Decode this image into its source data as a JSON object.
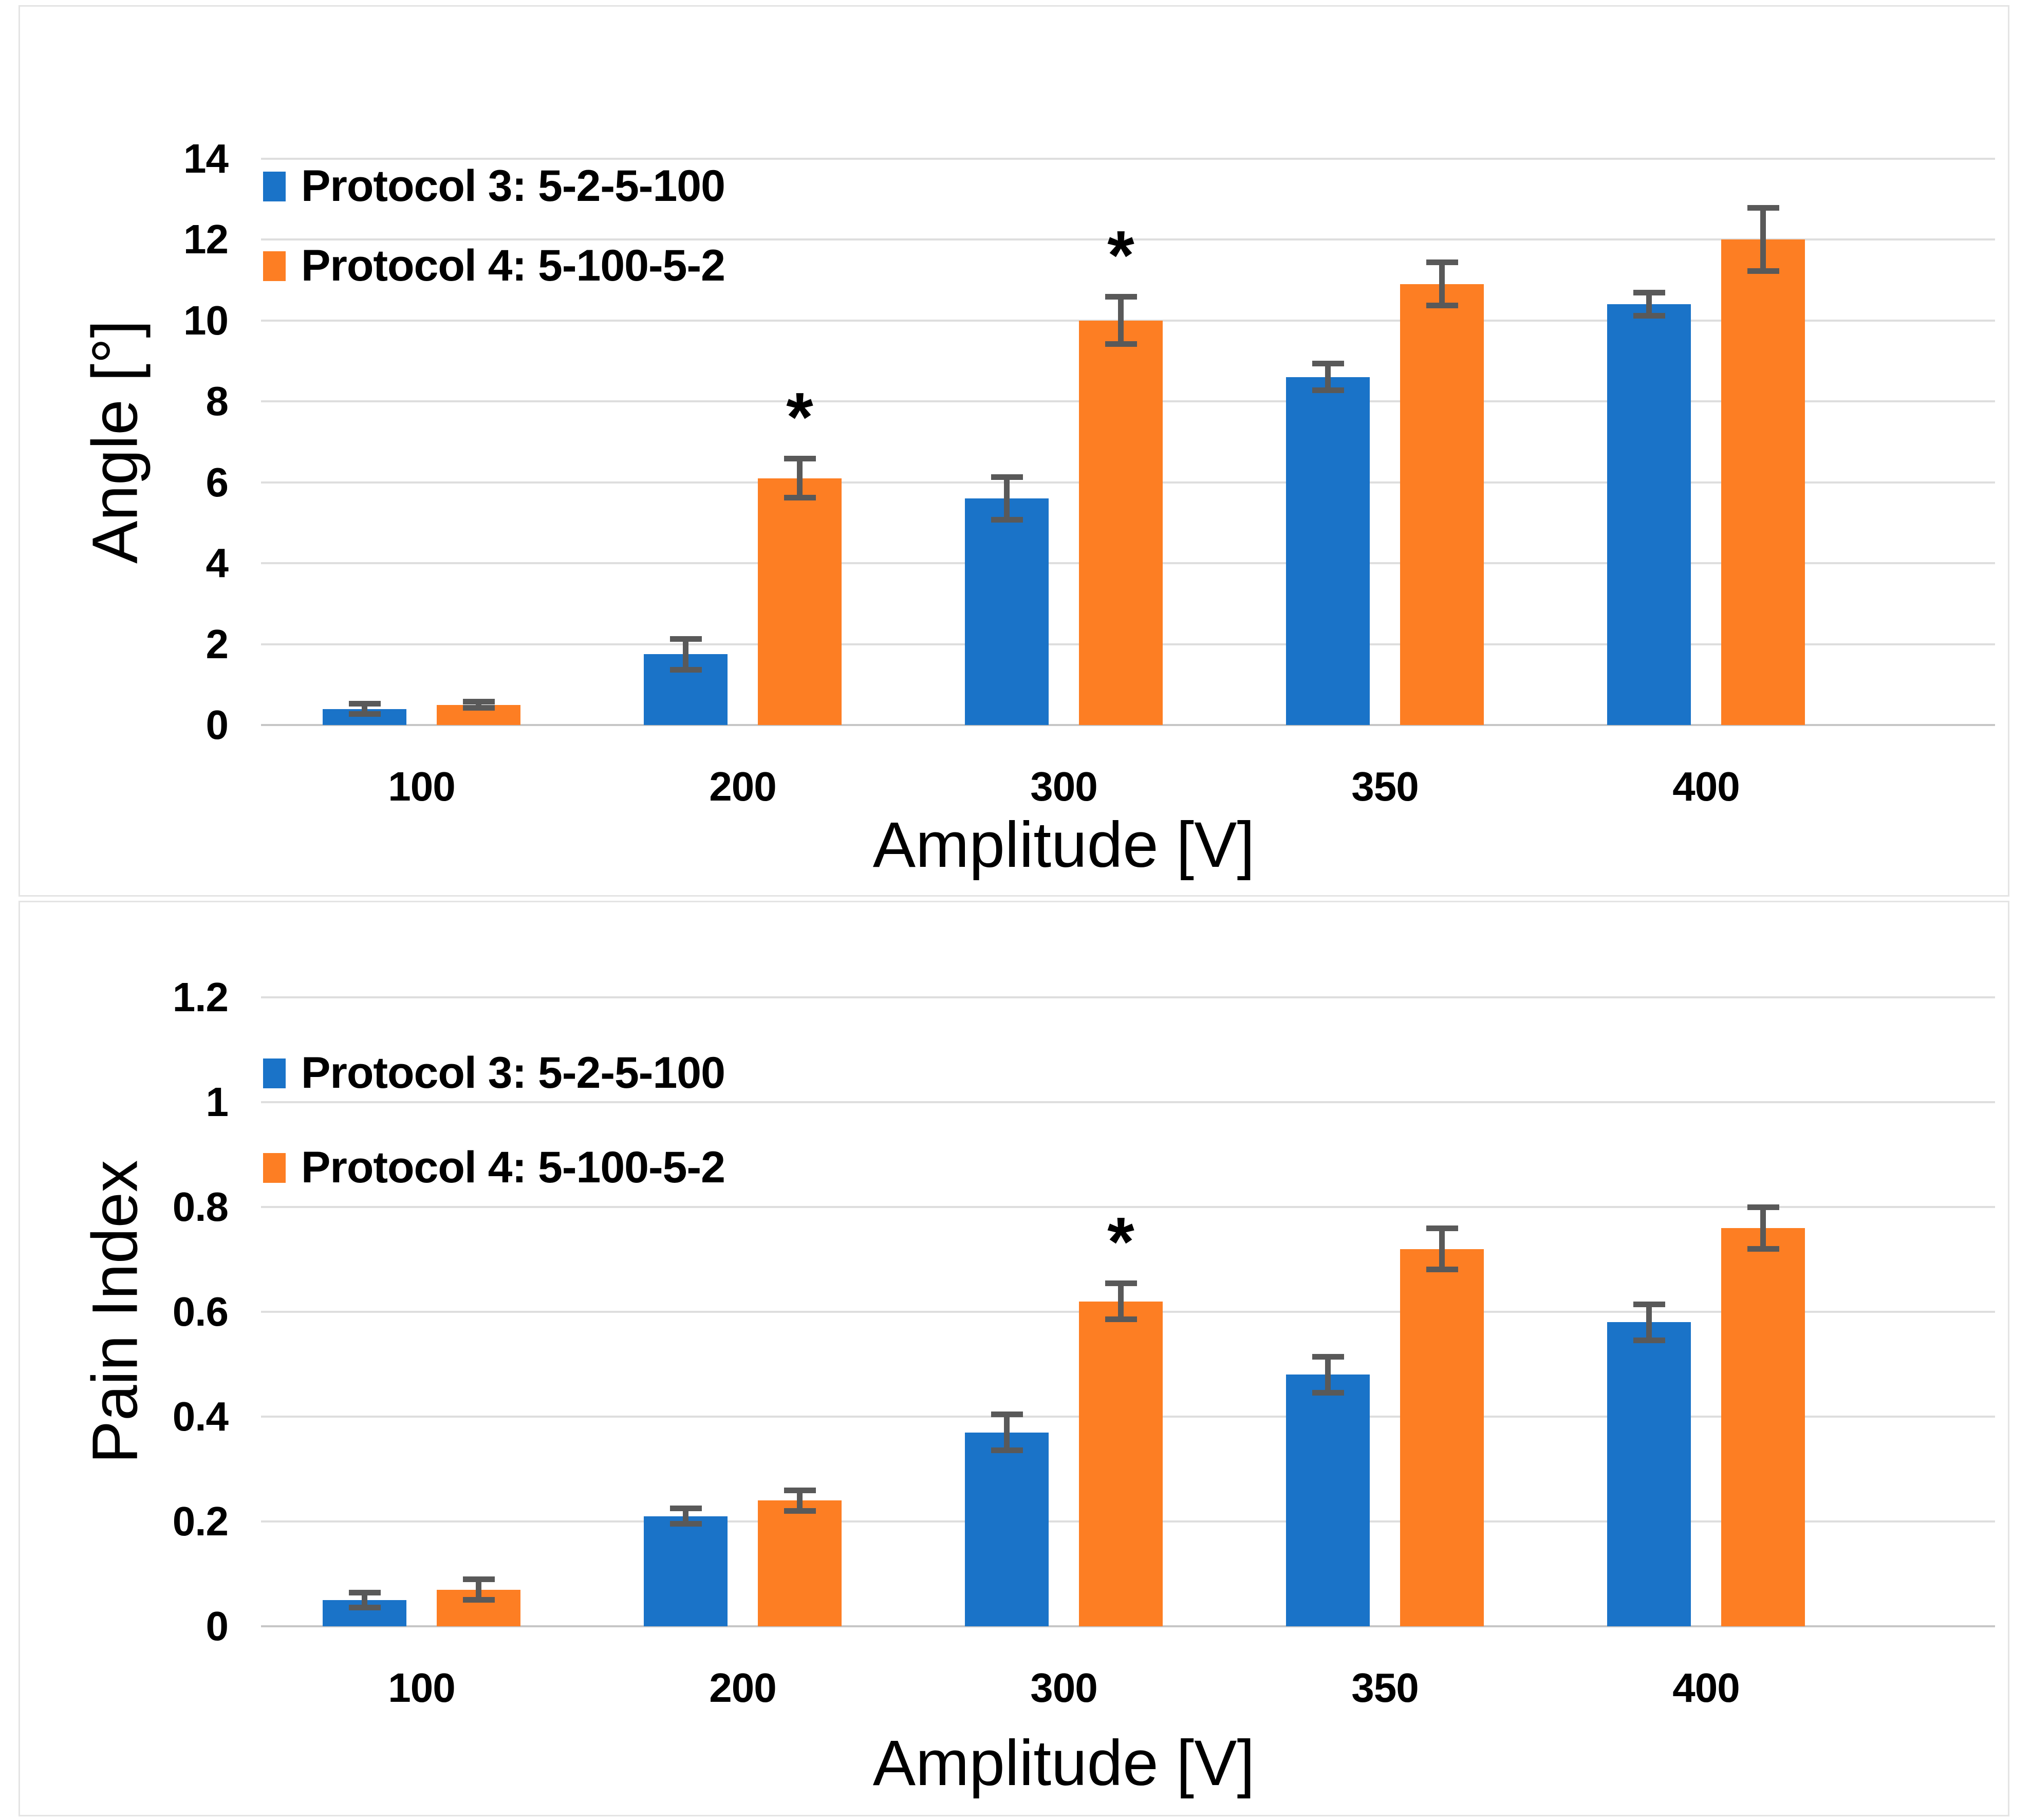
{
  "figure": {
    "description": "Two stacked bar charts comparing stimulation protocols",
    "panels": [
      {
        "name": "angle-chart"
      },
      {
        "name": "pain-index-chart"
      }
    ]
  },
  "colors": {
    "protocol3_blue": "#1A73C8",
    "protocol4_orange": "#FD7E23",
    "error_bar": "#595959",
    "gridline": "#dedede",
    "baseline": "#c6c6c6",
    "panel_border": "#e4e4e4",
    "text": "#000000"
  },
  "chart_data": [
    {
      "type": "bar",
      "title": "",
      "xlabel": "Amplitude [V]",
      "ylabel": "Angle [°]",
      "categories": [
        "100",
        "200",
        "300",
        "350",
        "400"
      ],
      "ylim": [
        0,
        14
      ],
      "grid": true,
      "legend_position": "top-left-inside",
      "yticks": {
        "values": [
          0,
          2,
          4,
          6,
          8,
          10,
          12,
          14
        ],
        "labels": [
          "0",
          "2",
          "4",
          "6",
          "8",
          "10",
          "12",
          "14"
        ]
      },
      "series": [
        {
          "name": "Protocol 3: 5-2-5-100",
          "color_key": "protocol3_blue",
          "values": [
            0.4,
            1.75,
            5.6,
            8.6,
            10.4
          ],
          "errors": [
            0.2,
            0.45,
            0.6,
            0.4,
            0.35
          ],
          "sig": [
            "",
            "",
            "",
            "",
            ""
          ]
        },
        {
          "name": "Protocol 4: 5-100-5-2",
          "color_key": "protocol4_orange",
          "values": [
            0.5,
            6.1,
            10.0,
            10.9,
            12.0
          ],
          "errors": [
            0.15,
            0.55,
            0.65,
            0.6,
            0.85
          ],
          "sig": [
            "",
            "*",
            "*",
            "",
            ""
          ]
        }
      ]
    },
    {
      "type": "bar",
      "title": "",
      "xlabel": "Amplitude [V]",
      "ylabel": "Pain Index",
      "categories": [
        "100",
        "200",
        "300",
        "350",
        "400"
      ],
      "ylim": [
        0,
        1.2
      ],
      "grid": true,
      "legend_position": "top-left-inside",
      "yticks": {
        "values": [
          0,
          0.2,
          0.4,
          0.6,
          0.8,
          1.0,
          1.2
        ],
        "labels": [
          "0",
          "0.2",
          "0.4",
          "0.6",
          "0.8",
          "1",
          "1.2"
        ]
      },
      "series": [
        {
          "name": "Protocol 3: 5-2-5-100",
          "color_key": "protocol3_blue",
          "values": [
            0.05,
            0.21,
            0.37,
            0.48,
            0.58
          ],
          "errors": [
            0.02,
            0.02,
            0.04,
            0.04,
            0.04
          ],
          "sig": [
            "",
            "",
            "",
            "",
            ""
          ]
        },
        {
          "name": "Protocol 4: 5-100-5-2",
          "color_key": "protocol4_orange",
          "values": [
            0.07,
            0.24,
            0.62,
            0.72,
            0.76
          ],
          "errors": [
            0.025,
            0.025,
            0.04,
            0.045,
            0.045
          ],
          "sig": [
            "",
            "",
            "*",
            "",
            ""
          ]
        }
      ]
    }
  ]
}
